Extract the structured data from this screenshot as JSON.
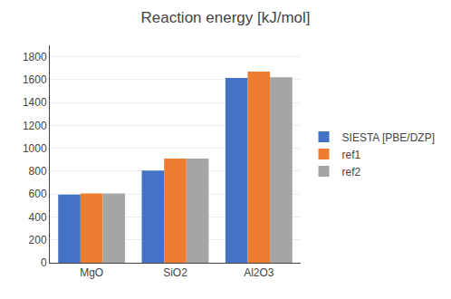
{
  "chart_data": {
    "type": "bar",
    "title": "Reaction energy [kJ/mol]",
    "categories": [
      "MgO",
      "SiO2",
      "Al2O3"
    ],
    "series": [
      {
        "name": "SIESTA [PBE/DZP]",
        "color": "#4472C4",
        "values": [
          595,
          805,
          1615
        ]
      },
      {
        "name": "ref1",
        "color": "#ED7D31",
        "values": [
          605,
          910,
          1670
        ]
      },
      {
        "name": "ref2",
        "color": "#A5A5A5",
        "values": [
          605,
          910,
          1620
        ]
      }
    ],
    "ylim": [
      0,
      1900
    ],
    "yticks": [
      0,
      200,
      400,
      600,
      800,
      1000,
      1200,
      1400,
      1600,
      1800
    ],
    "grid": true,
    "legend": "right"
  }
}
